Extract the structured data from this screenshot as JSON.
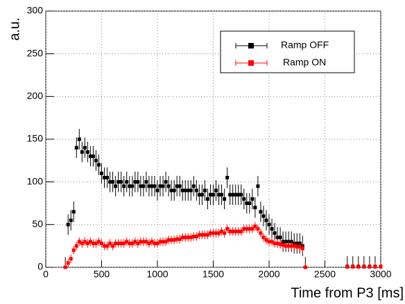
{
  "chart_data": {
    "type": "scatter",
    "y_label": "a.u.",
    "x_label": "Time from P3 [ms]",
    "x": [
      175,
      200,
      225,
      250,
      275,
      300,
      325,
      350,
      375,
      400,
      425,
      450,
      475,
      500,
      525,
      550,
      575,
      600,
      625,
      650,
      675,
      700,
      725,
      750,
      775,
      800,
      825,
      850,
      875,
      900,
      925,
      950,
      975,
      1000,
      1025,
      1050,
      1075,
      1100,
      1125,
      1150,
      1175,
      1200,
      1225,
      1250,
      1275,
      1300,
      1325,
      1350,
      1375,
      1400,
      1425,
      1450,
      1475,
      1500,
      1525,
      1550,
      1575,
      1600,
      1625,
      1650,
      1675,
      1700,
      1725,
      1750,
      1775,
      1800,
      1825,
      1850,
      1875,
      1900,
      1925,
      1950,
      1975,
      2000,
      2025,
      2050,
      2075,
      2100,
      2125,
      2150,
      2175,
      2200,
      2225,
      2250,
      2275,
      2300,
      2325,
      2700,
      2750,
      2800,
      2850,
      2900,
      2950,
      3000
    ],
    "series": [
      {
        "name": "Ramp OFF",
        "color": "#000000",
        "error": 12,
        "values": [
          0,
          50,
          55,
          65,
          140,
          150,
          135,
          140,
          135,
          130,
          130,
          125,
          120,
          110,
          105,
          105,
          100,
          100,
          95,
          100,
          100,
          95,
          100,
          95,
          95,
          100,
          100,
          95,
          95,
          100,
          95,
          95,
          95,
          90,
          95,
          95,
          100,
          95,
          90,
          90,
          95,
          95,
          90,
          90,
          90,
          90,
          95,
          90,
          85,
          85,
          90,
          80,
          85,
          85,
          90,
          85,
          85,
          80,
          105,
          85,
          85,
          85,
          85,
          85,
          80,
          75,
          75,
          80,
          70,
          95,
          65,
          60,
          55,
          50,
          45,
          40,
          35,
          35,
          30,
          30,
          30,
          30,
          28,
          28,
          28,
          25,
          0,
          1,
          1,
          1,
          1,
          1,
          1,
          1
        ]
      },
      {
        "name": "Ramp ON",
        "color": "#ff0000",
        "error": 5,
        "values": [
          0,
          5,
          10,
          20,
          25,
          30,
          28,
          30,
          28,
          30,
          28,
          28,
          30,
          28,
          25,
          25,
          28,
          25,
          28,
          28,
          28,
          28,
          30,
          28,
          28,
          30,
          28,
          30,
          30,
          30,
          28,
          30,
          28,
          28,
          30,
          30,
          30,
          32,
          32,
          32,
          33,
          33,
          35,
          35,
          35,
          35,
          36,
          36,
          38,
          38,
          38,
          38,
          40,
          40,
          40,
          40,
          42,
          40,
          45,
          42,
          42,
          42,
          42,
          42,
          45,
          45,
          45,
          45,
          48,
          45,
          40,
          35,
          32,
          30,
          30,
          28,
          28,
          27,
          26,
          25,
          25,
          25,
          25,
          24,
          24,
          22,
          0,
          0.5,
          0.5,
          0.5,
          0.5,
          0.5,
          0.5,
          0.5
        ]
      }
    ],
    "xlim": [
      0,
      3000
    ],
    "xticks": [
      0,
      500,
      1000,
      1500,
      2000,
      2500,
      3000
    ],
    "ylim": [
      0,
      300
    ],
    "yticks": [
      0,
      50,
      100,
      150,
      200,
      250,
      300
    ],
    "grid": true,
    "legend": "upper right"
  }
}
